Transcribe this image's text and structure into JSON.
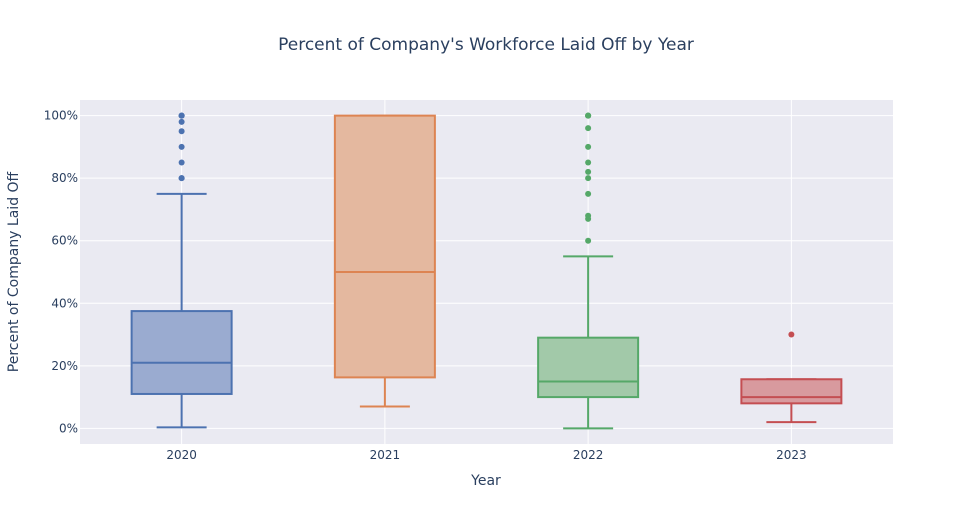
{
  "chart_data": {
    "type": "box",
    "title": "Percent of Company's Workforce Laid Off by Year",
    "xlabel": "Year",
    "ylabel": "Percent of Company Laid Off",
    "ylim": [
      -5,
      105
    ],
    "y_ticks": [
      0,
      20,
      40,
      60,
      80,
      100
    ],
    "y_tick_suffix": "%",
    "grid": true,
    "categories": [
      "2020",
      "2021",
      "2022",
      "2023"
    ],
    "series": [
      {
        "category": "2020",
        "color": "#4c72b0",
        "fill": "#9aabd0",
        "min": 0.3,
        "q1": 11,
        "median": 21,
        "q3": 37.5,
        "max": 75,
        "outliers": [
          80,
          80,
          85,
          90,
          95,
          98,
          100,
          100,
          100
        ]
      },
      {
        "category": "2021",
        "color": "#dd8452",
        "fill": "#e4b89f",
        "min": 7,
        "q1": 16.3,
        "median": 50,
        "q3": 100,
        "max": 100,
        "outliers": []
      },
      {
        "category": "2022",
        "color": "#55a868",
        "fill": "#a2c9a9",
        "min": 0,
        "q1": 10,
        "median": 15,
        "q3": 29,
        "max": 55,
        "outliers": [
          60,
          67,
          68,
          75,
          80,
          82,
          85,
          90,
          96,
          100,
          100,
          100
        ]
      },
      {
        "category": "2023",
        "color": "#c44e52",
        "fill": "#d89a9e",
        "min": 2,
        "q1": 8,
        "median": 10,
        "q3": 15.7,
        "max": 15.7,
        "outliers": [
          30
        ]
      }
    ]
  }
}
